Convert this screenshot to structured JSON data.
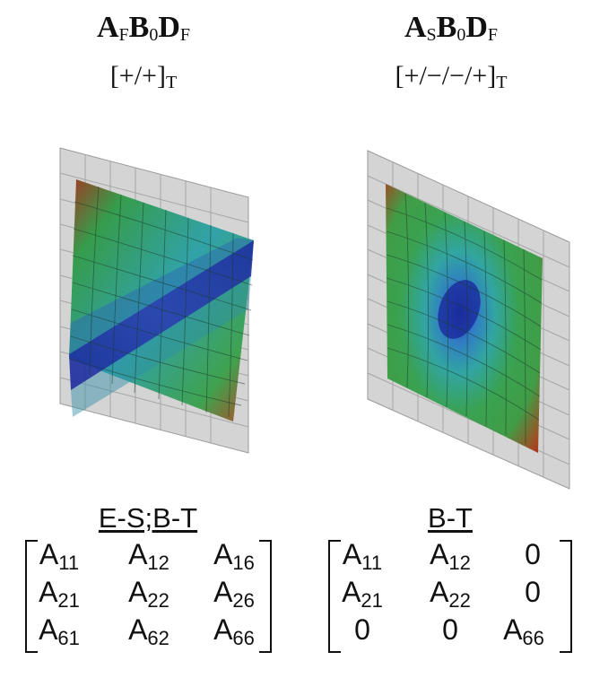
{
  "left": {
    "title": {
      "a": "A",
      "a_sub": "F",
      "b": "B",
      "b_sub": "0",
      "d": "D",
      "d_sub": "F"
    },
    "layup": {
      "text": "[+/+]",
      "sub": "T"
    },
    "label": "E-S;B-T",
    "matrix": [
      [
        {
          "base": "A",
          "sub": "11"
        },
        {
          "base": "A",
          "sub": "12"
        },
        {
          "base": "A",
          "sub": "16"
        }
      ],
      [
        {
          "base": "A",
          "sub": "21"
        },
        {
          "base": "A",
          "sub": "22"
        },
        {
          "base": "A",
          "sub": "26"
        }
      ],
      [
        {
          "base": "A",
          "sub": "61"
        },
        {
          "base": "A",
          "sub": "62"
        },
        {
          "base": "A",
          "sub": "66"
        }
      ]
    ]
  },
  "right": {
    "title": {
      "a": "A",
      "a_sub": "S",
      "b": "B",
      "b_sub": "0",
      "d": "D",
      "d_sub": "F"
    },
    "layup": {
      "text": "[+/−/−/+]",
      "sub": "T"
    },
    "label": "B-T",
    "matrix": [
      [
        {
          "base": "A",
          "sub": "11"
        },
        {
          "base": "A",
          "sub": "12"
        },
        {
          "base": "0",
          "sub": ""
        }
      ],
      [
        {
          "base": "A",
          "sub": "21"
        },
        {
          "base": "A",
          "sub": "22"
        },
        {
          "base": "0",
          "sub": ""
        }
      ],
      [
        {
          "base": "0",
          "sub": ""
        },
        {
          "base": "0",
          "sub": ""
        },
        {
          "base": "A",
          "sub": "66"
        }
      ]
    ]
  },
  "colors": {
    "mesh_grey": "#d4d4d4",
    "low": "#1a2a9c",
    "mid": "#2e9e4a",
    "high": "#b01f1a"
  }
}
